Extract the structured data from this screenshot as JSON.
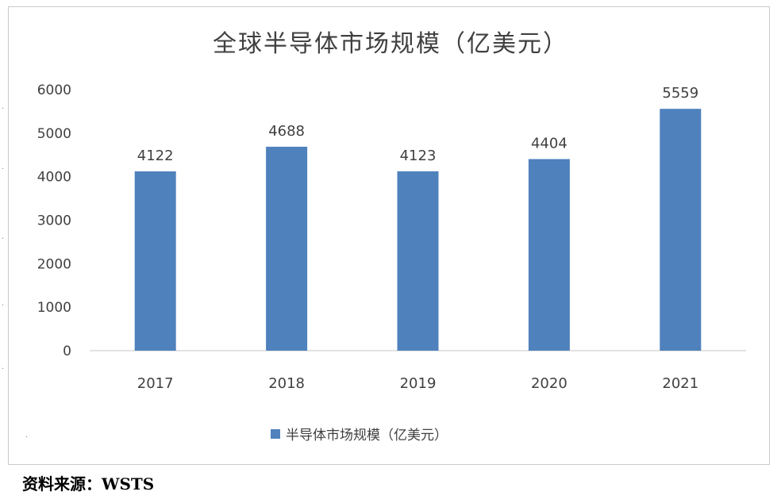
{
  "chart_data": {
    "type": "bar",
    "title": "全球半导体市场规模（亿美元）",
    "categories": [
      "2017",
      "2018",
      "2019",
      "2020",
      "2021"
    ],
    "series": [
      {
        "name": "半导体市场规模（亿美元）",
        "values": [
          4122,
          4688,
          4123,
          4404,
          5559
        ]
      }
    ],
    "data_labels": [
      "4122",
      "4688",
      "4123",
      "4404",
      "5559"
    ],
    "y_ticks": [
      "0",
      "1000",
      "2000",
      "3000",
      "4000",
      "5000",
      "6000"
    ],
    "ylim": [
      0,
      6000
    ],
    "xlabel": "",
    "ylabel": "",
    "grid": false,
    "legend_position": "bottom",
    "bar_color": "#4f81bd",
    "axis_color": "#d9d9d9",
    "text_color": "#404040"
  },
  "source_note": "资料来源：WSTS"
}
